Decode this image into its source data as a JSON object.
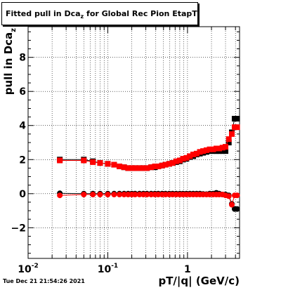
{
  "chart_data": {
    "type": "scatter",
    "title_main": "Fitted pull in Dca",
    "title_sub": "z",
    "title_rest": " for Global Rec Pion EtapT",
    "xlabel": "pT/|q| (GeV/c)",
    "ylabel_main": "pull in Dca",
    "ylabel_sub": "z",
    "xscale": "log",
    "xlim": [
      0.01,
      4.5
    ],
    "ylim": [
      -3.8,
      9.8
    ],
    "grid": true,
    "x_tick_labels": [
      {
        "value": 0.01,
        "base": "10",
        "exp": "-2"
      },
      {
        "value": 0.1,
        "base": "10",
        "exp": "-1"
      },
      {
        "value": 1,
        "base": "1",
        "exp": ""
      }
    ],
    "y_ticks": [
      -2,
      0,
      2,
      4,
      6,
      8
    ],
    "y_tick_labels": [
      "−2",
      "0",
      "2",
      "4",
      "6",
      "8"
    ],
    "series": [
      {
        "kind": "mean",
        "color": "#000000",
        "x": [
          0.025,
          0.05,
          0.065,
          0.08,
          0.1,
          0.12,
          0.14,
          0.16,
          0.18,
          0.2,
          0.22,
          0.25,
          0.28,
          0.31,
          0.35,
          0.39,
          0.43,
          0.48,
          0.53,
          0.59,
          0.65,
          0.72,
          0.8,
          0.88,
          0.97,
          1.07,
          1.18,
          1.3,
          1.43,
          1.57,
          1.73,
          1.9,
          2.1,
          2.3,
          2.5,
          2.75,
          3.0,
          3.3,
          3.6,
          3.9,
          4.2
        ],
        "y": [
          2.0,
          2.0,
          1.9,
          1.8,
          1.75,
          1.7,
          1.6,
          1.55,
          1.5,
          1.5,
          1.5,
          1.5,
          1.5,
          1.5,
          1.55,
          1.55,
          1.6,
          1.65,
          1.7,
          1.75,
          1.8,
          1.85,
          1.9,
          2.0,
          2.05,
          2.15,
          2.2,
          2.3,
          2.35,
          2.4,
          2.45,
          2.5,
          2.5,
          2.5,
          2.5,
          2.5,
          2.5,
          3.0,
          3.6,
          4.4,
          4.4
        ]
      },
      {
        "kind": "mean",
        "color": "#ff0000",
        "x": [
          0.025,
          0.05,
          0.065,
          0.08,
          0.1,
          0.12,
          0.14,
          0.16,
          0.18,
          0.2,
          0.22,
          0.25,
          0.28,
          0.31,
          0.35,
          0.39,
          0.43,
          0.48,
          0.53,
          0.59,
          0.65,
          0.72,
          0.8,
          0.88,
          0.97,
          1.07,
          1.18,
          1.3,
          1.43,
          1.57,
          1.73,
          1.9,
          2.1,
          2.3,
          2.5,
          2.75,
          3.0,
          3.3,
          3.6,
          3.9,
          4.2
        ],
        "y": [
          1.95,
          1.95,
          1.85,
          1.8,
          1.75,
          1.7,
          1.6,
          1.55,
          1.5,
          1.5,
          1.5,
          1.5,
          1.5,
          1.5,
          1.55,
          1.6,
          1.6,
          1.65,
          1.7,
          1.75,
          1.8,
          1.9,
          1.95,
          2.05,
          2.1,
          2.2,
          2.3,
          2.35,
          2.45,
          2.5,
          2.55,
          2.6,
          2.6,
          2.65,
          2.65,
          2.7,
          2.75,
          3.2,
          3.5,
          3.9,
          3.9
        ]
      },
      {
        "kind": "sigma",
        "color": "#000000",
        "x": [
          0.025,
          0.05,
          0.065,
          0.08,
          0.1,
          0.12,
          0.14,
          0.16,
          0.18,
          0.2,
          0.22,
          0.25,
          0.28,
          0.31,
          0.35,
          0.39,
          0.43,
          0.48,
          0.53,
          0.59,
          0.65,
          0.72,
          0.8,
          0.88,
          0.97,
          1.07,
          1.18,
          1.3,
          1.43,
          1.57,
          1.73,
          1.9,
          2.1,
          2.3,
          2.5,
          2.75,
          3.0,
          3.3,
          3.6,
          3.9,
          4.2
        ],
        "y": [
          0.02,
          0.0,
          0.0,
          0.0,
          0.0,
          0.0,
          0.0,
          0.0,
          0.0,
          0.0,
          0.0,
          0.0,
          0.0,
          0.0,
          0.0,
          0.0,
          0.0,
          0.0,
          0.0,
          0.0,
          0.0,
          0.0,
          0.0,
          0.0,
          0.0,
          0.0,
          0.0,
          0.0,
          0.0,
          -0.02,
          -0.03,
          0.0,
          0.0,
          0.05,
          0.0,
          -0.05,
          -0.05,
          -0.1,
          -0.6,
          -0.9,
          -0.9
        ]
      },
      {
        "kind": "sigma",
        "color": "#ff0000",
        "x": [
          0.025,
          0.05,
          0.065,
          0.08,
          0.1,
          0.12,
          0.14,
          0.16,
          0.18,
          0.2,
          0.22,
          0.25,
          0.28,
          0.31,
          0.35,
          0.39,
          0.43,
          0.48,
          0.53,
          0.59,
          0.65,
          0.72,
          0.8,
          0.88,
          0.97,
          1.07,
          1.18,
          1.3,
          1.43,
          1.57,
          1.73,
          1.9,
          2.1,
          2.3,
          2.5,
          2.75,
          3.0,
          3.3,
          3.6,
          3.9,
          4.2
        ],
        "y": [
          -0.1,
          -0.05,
          -0.05,
          -0.05,
          -0.05,
          -0.05,
          -0.05,
          -0.05,
          -0.05,
          -0.05,
          -0.05,
          -0.05,
          -0.05,
          -0.05,
          -0.05,
          -0.05,
          -0.05,
          -0.05,
          -0.05,
          -0.05,
          -0.05,
          -0.05,
          -0.05,
          -0.05,
          -0.05,
          -0.05,
          -0.05,
          -0.05,
          -0.05,
          -0.05,
          -0.05,
          -0.05,
          -0.05,
          -0.05,
          -0.05,
          -0.05,
          -0.1,
          -0.15,
          -0.65,
          -0.1,
          -0.1
        ]
      }
    ]
  },
  "timestamp": "Tue Dec 21 21:54:26 2021"
}
